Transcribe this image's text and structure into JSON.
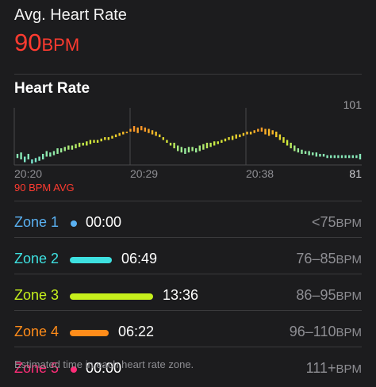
{
  "summary": {
    "label": "Avg. Heart Rate",
    "value": "90",
    "unit": "BPM"
  },
  "chart_title": "Heart Rate",
  "chart_data": {
    "type": "bar",
    "y_max_label": "101",
    "y_min_label": "81",
    "ylim": [
      81,
      101
    ],
    "x_tick_labels": [
      "20:20",
      "20:29",
      "20:38"
    ],
    "avg_label": "90 BPM AVG",
    "grid": false,
    "samples": [
      [
        83.5,
        85
      ],
      [
        83,
        85.5
      ],
      [
        82,
        84
      ],
      [
        83,
        85
      ],
      [
        81.5,
        83
      ],
      [
        82,
        83.5
      ],
      [
        82.5,
        84
      ],
      [
        83,
        85
      ],
      [
        84,
        86
      ],
      [
        84,
        85.5
      ],
      [
        84.5,
        86
      ],
      [
        85,
        87
      ],
      [
        85.5,
        87
      ],
      [
        86,
        87.5
      ],
      [
        86.5,
        88
      ],
      [
        86.5,
        88
      ],
      [
        87,
        88.5
      ],
      [
        87.5,
        89
      ],
      [
        88,
        89
      ],
      [
        88,
        89.5
      ],
      [
        88.5,
        90
      ],
      [
        89,
        90
      ],
      [
        89,
        90
      ],
      [
        89.5,
        90.5
      ],
      [
        90,
        91
      ],
      [
        90,
        91
      ],
      [
        90.5,
        91.5
      ],
      [
        91,
        92
      ],
      [
        91.5,
        92.5
      ],
      [
        92,
        93
      ],
      [
        92.5,
        93
      ],
      [
        93,
        94
      ],
      [
        93,
        95
      ],
      [
        92.5,
        94.5
      ],
      [
        93.5,
        95
      ],
      [
        93,
        94.5
      ],
      [
        92.5,
        94
      ],
      [
        92,
        93.5
      ],
      [
        91.5,
        93
      ],
      [
        91,
        92
      ],
      [
        90,
        91
      ],
      [
        89,
        90
      ],
      [
        88,
        89
      ],
      [
        87,
        89
      ],
      [
        86,
        88
      ],
      [
        85.5,
        87.5
      ],
      [
        85,
        87
      ],
      [
        85.5,
        87.5
      ],
      [
        86,
        87.5
      ],
      [
        85.5,
        87
      ],
      [
        86,
        88
      ],
      [
        86.5,
        88.5
      ],
      [
        87,
        89
      ],
      [
        87.5,
        89
      ],
      [
        88,
        89.5
      ],
      [
        88.5,
        89.5
      ],
      [
        89,
        90
      ],
      [
        89.5,
        90.5
      ],
      [
        90,
        91
      ],
      [
        90,
        91.5
      ],
      [
        90.5,
        92
      ],
      [
        91,
        92
      ],
      [
        91.5,
        92.5
      ],
      [
        92,
        93
      ],
      [
        92,
        93
      ],
      [
        92.5,
        93.5
      ],
      [
        93,
        94
      ],
      [
        93,
        94.5
      ],
      [
        92,
        94
      ],
      [
        91.5,
        94
      ],
      [
        92,
        93.5
      ],
      [
        91,
        93
      ],
      [
        90,
        92
      ],
      [
        89,
        91
      ],
      [
        88,
        90
      ],
      [
        87,
        89
      ],
      [
        86,
        88
      ],
      [
        85.5,
        87
      ],
      [
        85,
        86.5
      ],
      [
        85,
        86
      ],
      [
        84.5,
        86
      ],
      [
        84.5,
        85.5
      ],
      [
        84,
        85.5
      ],
      [
        84,
        85
      ],
      [
        84,
        85
      ],
      [
        83.5,
        84.5
      ],
      [
        83.5,
        84.5
      ],
      [
        83.5,
        84.5
      ],
      [
        83.5,
        84.5
      ],
      [
        83.5,
        84.5
      ],
      [
        83.5,
        84.5
      ],
      [
        83.5,
        84.5
      ],
      [
        83.5,
        84.5
      ],
      [
        83.5,
        84.5
      ],
      [
        83,
        85
      ]
    ]
  },
  "zones": [
    {
      "name": "Zone 1",
      "time": "00:00",
      "range": "<75",
      "unit": "BPM",
      "color": "#5ab1f2",
      "fraction": 0
    },
    {
      "name": "Zone 2",
      "time": "06:49",
      "range": "76–85",
      "unit": "BPM",
      "color": "#3ee0e0",
      "fraction": 0.5
    },
    {
      "name": "Zone 3",
      "time": "13:36",
      "range": "86–95",
      "unit": "BPM",
      "color": "#c6f01c",
      "fraction": 1
    },
    {
      "name": "Zone 4",
      "time": "06:22",
      "range": "96–110",
      "unit": "BPM",
      "color": "#ff8c1a",
      "fraction": 0.47
    },
    {
      "name": "Zone 5",
      "time": "00:00",
      "range": "111+",
      "unit": "BPM",
      "color": "#ff2d78",
      "fraction": 0
    }
  ],
  "footnote": "Estimated time in each heart rate zone."
}
